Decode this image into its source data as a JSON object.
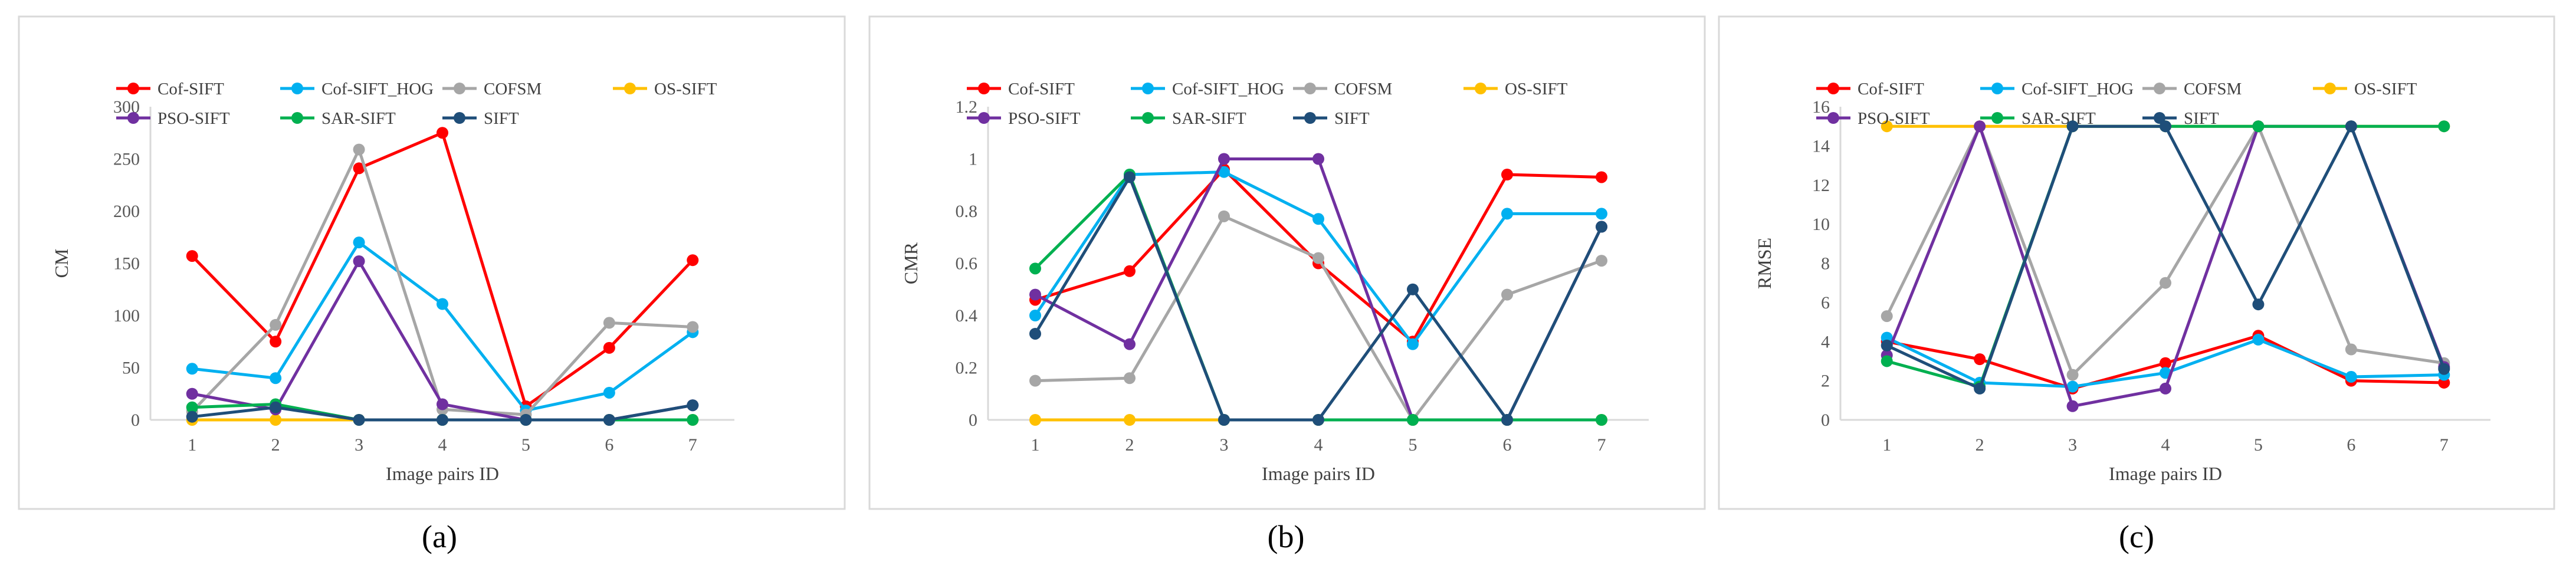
{
  "figure": {
    "colors": {
      "Cof-SIFT": "#ff0000",
      "Cof-SIFT_HOG": "#00b0f0",
      "COFSM": "#a6a6a6",
      "OS-SIFT": "#ffc000",
      "PSO-SIFT": "#7030a0",
      "SAR-SIFT": "#00b050",
      "SIFT": "#1f4e79"
    }
  },
  "chart_data": [
    {
      "type": "line",
      "caption": "(a)",
      "xlabel": "Image pairs ID",
      "ylabel": "CM",
      "x": [
        1,
        2,
        3,
        4,
        5,
        6,
        7
      ],
      "ylim": [
        0,
        300
      ],
      "yticks": [
        0,
        50,
        100,
        150,
        200,
        250,
        300
      ],
      "ytick_labels": [
        "0",
        "50",
        "100",
        "150",
        "200",
        "250",
        "300"
      ],
      "series": [
        {
          "name": "Cof-SIFT",
          "values": [
            157,
            75,
            241,
            275,
            13,
            69,
            153
          ]
        },
        {
          "name": "Cof-SIFT_HOG",
          "values": [
            49,
            40,
            170,
            111,
            9,
            26,
            84
          ]
        },
        {
          "name": "COFSM",
          "values": [
            8,
            91,
            259,
            10,
            5,
            93,
            89
          ]
        },
        {
          "name": "OS-SIFT",
          "values": [
            0,
            0,
            0,
            0,
            0,
            0,
            0
          ]
        },
        {
          "name": "PSO-SIFT",
          "values": [
            25,
            10,
            152,
            15,
            0,
            0,
            14
          ]
        },
        {
          "name": "SAR-SIFT",
          "values": [
            12,
            15,
            0,
            0,
            0,
            0,
            0
          ]
        },
        {
          "name": "SIFT",
          "values": [
            3,
            12,
            0,
            0,
            0,
            0,
            14
          ]
        }
      ]
    },
    {
      "type": "line",
      "caption": "(b)",
      "xlabel": "Image pairs ID",
      "ylabel": "CMR",
      "x": [
        1,
        2,
        3,
        4,
        5,
        6,
        7
      ],
      "ylim": [
        0,
        1.2
      ],
      "yticks": [
        0,
        0.2,
        0.4,
        0.6,
        0.8,
        1.0,
        1.2
      ],
      "ytick_labels": [
        "0",
        "0.2",
        "0.4",
        "0.6",
        "0.8",
        "1",
        "1.2"
      ],
      "series": [
        {
          "name": "Cof-SIFT",
          "values": [
            0.46,
            0.57,
            0.96,
            0.6,
            0.3,
            0.94,
            0.93
          ]
        },
        {
          "name": "Cof-SIFT_HOG",
          "values": [
            0.4,
            0.94,
            0.95,
            0.77,
            0.29,
            0.79,
            0.79
          ]
        },
        {
          "name": "COFSM",
          "values": [
            0.15,
            0.16,
            0.78,
            0.62,
            0.0,
            0.48,
            0.61
          ]
        },
        {
          "name": "OS-SIFT",
          "values": [
            0,
            0,
            0,
            0,
            0,
            0,
            0
          ]
        },
        {
          "name": "PSO-SIFT",
          "values": [
            0.48,
            0.29,
            1.0,
            1.0,
            0.0,
            0.0,
            0.74
          ]
        },
        {
          "name": "SAR-SIFT",
          "values": [
            0.58,
            0.94,
            0,
            0,
            0,
            0,
            0
          ]
        },
        {
          "name": "SIFT",
          "values": [
            0.33,
            0.93,
            0.0,
            0.0,
            0.5,
            0.0,
            0.74
          ]
        }
      ]
    },
    {
      "type": "line",
      "caption": "(c)",
      "xlabel": "Image pairs ID",
      "ylabel": "RMSE",
      "x": [
        1,
        2,
        3,
        4,
        5,
        6,
        7
      ],
      "ylim": [
        0,
        16
      ],
      "yticks": [
        0,
        2,
        4,
        6,
        8,
        10,
        12,
        14,
        16
      ],
      "ytick_labels": [
        "0",
        "2",
        "4",
        "6",
        "8",
        "10",
        "12",
        "14",
        "16"
      ],
      "series": [
        {
          "name": "Cof-SIFT",
          "values": [
            4.0,
            3.1,
            1.6,
            2.9,
            4.3,
            2.0,
            1.9
          ]
        },
        {
          "name": "Cof-SIFT_HOG",
          "values": [
            4.2,
            1.9,
            1.7,
            2.4,
            4.1,
            2.2,
            2.3
          ]
        },
        {
          "name": "COFSM",
          "values": [
            5.3,
            15.0,
            2.3,
            7.0,
            15.0,
            3.6,
            2.9
          ]
        },
        {
          "name": "OS-SIFT",
          "values": [
            15,
            15,
            15,
            15,
            15,
            15,
            15
          ]
        },
        {
          "name": "PSO-SIFT",
          "values": [
            3.3,
            15.0,
            0.7,
            1.6,
            15.0,
            15.0,
            2.7
          ]
        },
        {
          "name": "SAR-SIFT",
          "values": [
            3.0,
            1.7,
            15.0,
            15.0,
            15.0,
            15.0,
            15.0
          ]
        },
        {
          "name": "SIFT",
          "values": [
            3.8,
            1.6,
            15.0,
            15.0,
            5.9,
            15.0,
            2.6
          ]
        }
      ]
    }
  ]
}
